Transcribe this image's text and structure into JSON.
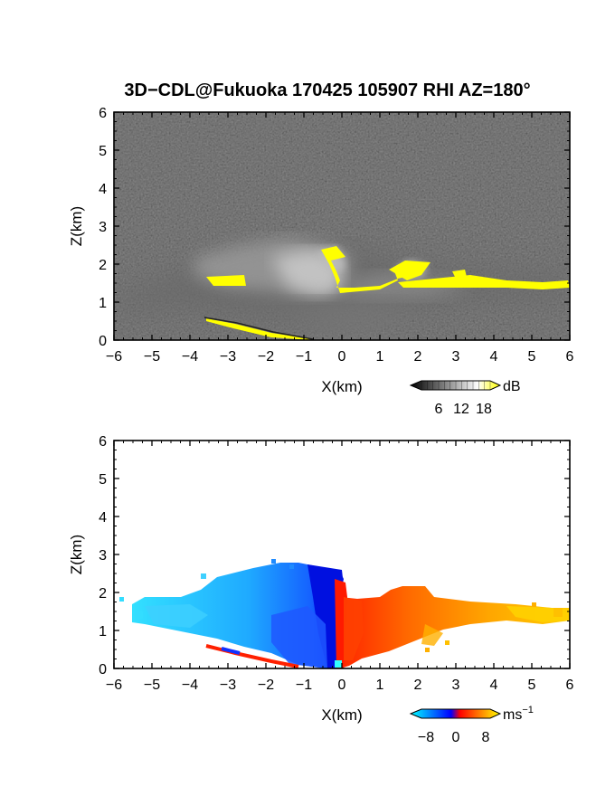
{
  "chart_data": [
    {
      "type": "heatmap",
      "title": "3D−CDL@Fukuoka 170425 105907 RHI AZ=180°",
      "xlabel": "X(km)",
      "ylabel": "Z(km)",
      "xlim": [
        -6,
        6
      ],
      "ylim": [
        0,
        6
      ],
      "xticks": [
        "−6",
        "−5",
        "−4",
        "−3",
        "−2",
        "−1",
        "0",
        "1",
        "2",
        "3",
        "4",
        "5",
        "6"
      ],
      "yticks": [
        "0",
        "1",
        "2",
        "3",
        "4",
        "5",
        "6"
      ],
      "colorbar": {
        "label": "dB",
        "ticks": [
          "6",
          "12",
          "18"
        ],
        "colors": [
          "#000000",
          "#ffffff",
          "#ffff00"
        ]
      },
      "background_color": "#181818",
      "features": [
        {
          "name": "cloud layer",
          "x_range": [
            -6,
            6
          ],
          "z_base": [
            0.9,
            1.0
          ],
          "z_top": [
            1.6,
            2.4
          ]
        },
        {
          "name": "strong echo (>18 dB) cloud base",
          "x_range": [
            -3.5,
            6
          ],
          "z": 1.55,
          "color": "#ffff00"
        },
        {
          "name": "ground clutter line",
          "x_range": [
            -3.5,
            -0.8
          ],
          "z": [
            0.55,
            0.05
          ],
          "color": "#ffff00"
        }
      ]
    },
    {
      "type": "heatmap",
      "xlabel": "X(km)",
      "ylabel": "Z(km)",
      "xlim": [
        -6,
        6
      ],
      "ylim": [
        0,
        6
      ],
      "xticks": [
        "−6",
        "−5",
        "−4",
        "−3",
        "−2",
        "−1",
        "0",
        "1",
        "2",
        "3",
        "4",
        "5",
        "6"
      ],
      "yticks": [
        "0",
        "1",
        "2",
        "3",
        "4",
        "5",
        "6"
      ],
      "colorbar": {
        "label": "ms",
        "label_sup": "−1",
        "ticks": [
          "−8",
          "0",
          "8"
        ],
        "colors": [
          "#00ffff",
          "#0000ff",
          "#ff0000",
          "#ffff00"
        ]
      },
      "background_color": "#ffffff",
      "features": [
        {
          "name": "negative velocity region",
          "x_range": [
            -6,
            0
          ],
          "value_range": [
            -8,
            -3
          ],
          "z_top": [
            1.8,
            2.8
          ]
        },
        {
          "name": "positive velocity region",
          "x_range": [
            0,
            6
          ],
          "value_range": [
            0,
            8
          ],
          "z_top": [
            1.5,
            2.1
          ]
        }
      ]
    }
  ]
}
